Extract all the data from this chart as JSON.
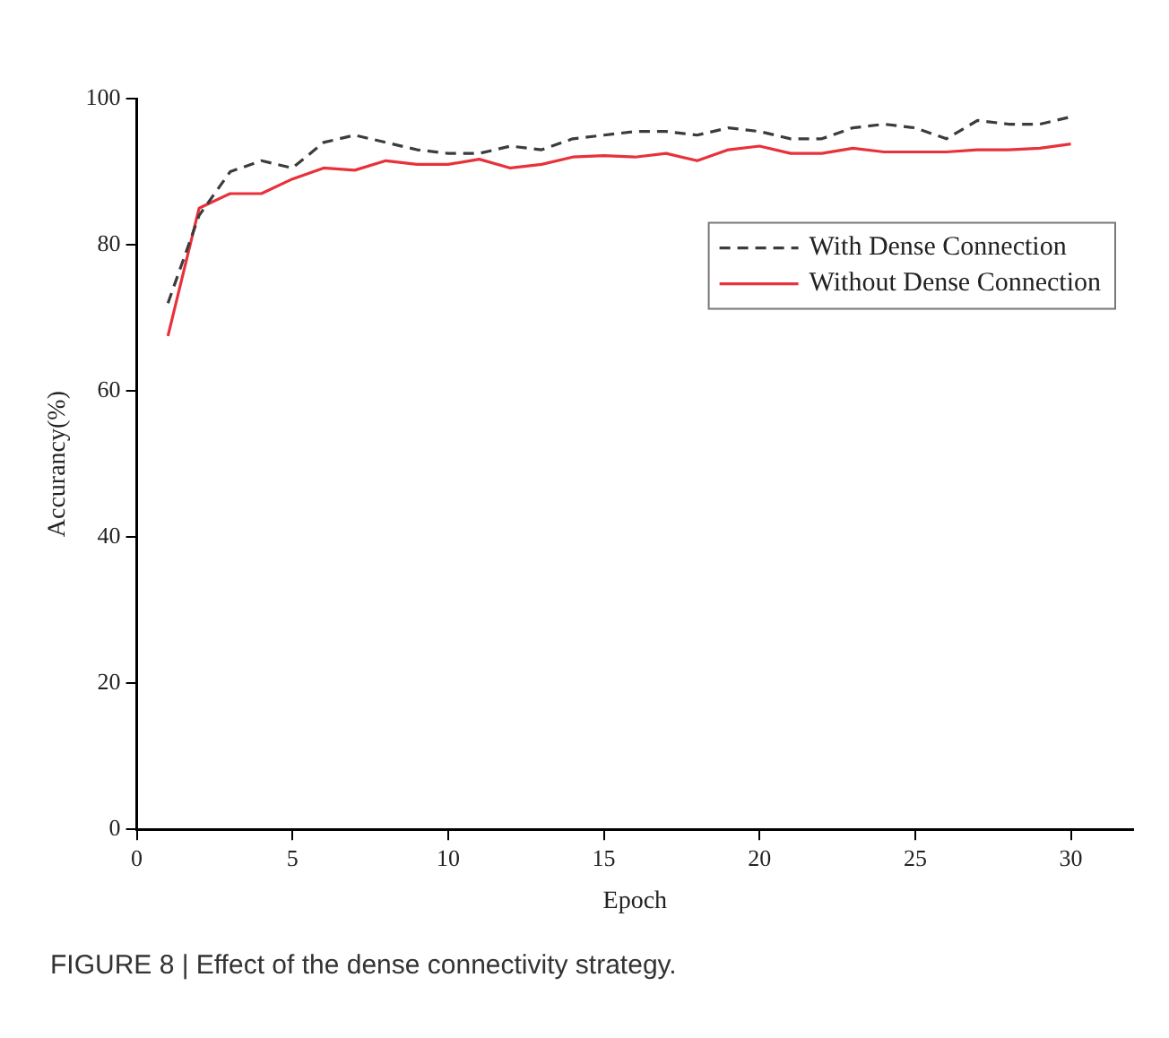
{
  "chart_data": {
    "type": "line",
    "xlabel": "Epoch",
    "ylabel": "Accurancy(%)",
    "x": [
      1,
      2,
      3,
      4,
      5,
      6,
      7,
      8,
      9,
      10,
      11,
      12,
      13,
      14,
      15,
      16,
      17,
      18,
      19,
      20,
      21,
      22,
      23,
      24,
      25,
      26,
      27,
      28,
      29,
      30
    ],
    "xlim": [
      0,
      32
    ],
    "xticks": [
      0,
      5,
      10,
      15,
      20,
      25,
      30
    ],
    "ylim": [
      0,
      100
    ],
    "yticks": [
      0,
      20,
      40,
      60,
      80,
      100
    ],
    "grid": false,
    "legend": "top right",
    "marker": "none",
    "series": [
      {
        "name": "With Dense Connection",
        "color": "#3c3c3c",
        "line_style": "dashed",
        "values": [
          72,
          84,
          90,
          91.5,
          90.5,
          94,
          95,
          94,
          93,
          92.5,
          92.5,
          93.5,
          93,
          94.5,
          95,
          95.5,
          95.5,
          95,
          96,
          95.5,
          94.5,
          94.5,
          96,
          96.5,
          96,
          94.5,
          97,
          96.5,
          96.5,
          97.5
        ]
      },
      {
        "name": "Without Dense Connection",
        "color": "#e8313a",
        "line_style": "solid",
        "values": [
          67.5,
          85,
          87,
          87,
          89,
          90.5,
          90.2,
          91.5,
          91,
          91,
          91.7,
          90.5,
          91,
          92,
          92.2,
          92,
          92.5,
          91.5,
          93,
          93.5,
          92.5,
          92.5,
          93.2,
          92.7,
          92.7,
          92.7,
          93,
          93,
          93.2,
          93.8
        ]
      }
    ],
    "annotations": [
      "FIGURE 8 | Effect of the dense connectivity strategy."
    ]
  }
}
